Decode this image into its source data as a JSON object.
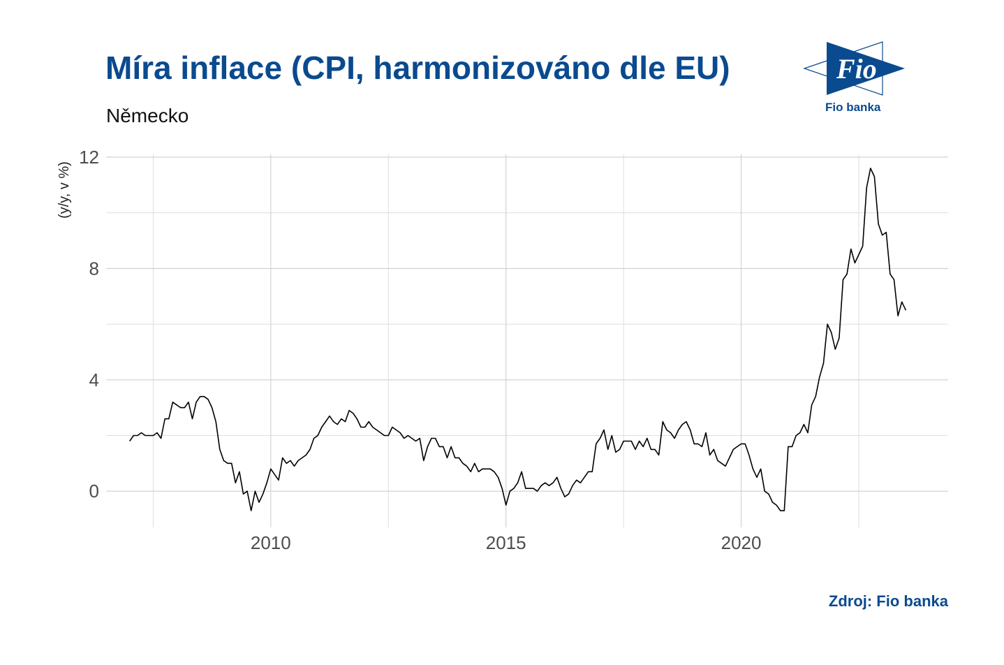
{
  "header": {
    "title": "Míra inflace (CPI, harmonizováno dle EU)",
    "subtitle": "Německo"
  },
  "logo": {
    "text": "Fio",
    "caption": "Fio banka",
    "color": "#0a4a8f"
  },
  "footer": {
    "source": "Zdroj: Fio banka"
  },
  "chart_data": {
    "type": "line",
    "title": "Míra inflace (CPI, harmonizováno dle EU)",
    "subtitle": "Německo",
    "xlabel": "",
    "ylabel": "(y/y, v %)",
    "xlim": [
      2006.5,
      2024.4
    ],
    "ylim": [
      -1.3,
      12.1
    ],
    "x_ticks": [
      2010,
      2015,
      2020
    ],
    "x_tick_labels": [
      "2010",
      "2015",
      "2020"
    ],
    "x_minor_gridlines": [
      2007.5,
      2012.5,
      2017.5,
      2022.5
    ],
    "y_ticks": [
      0,
      4,
      8,
      12
    ],
    "y_tick_labels": [
      "0",
      "4",
      "8",
      "12"
    ],
    "y_minor_gridlines": [
      2,
      6,
      10
    ],
    "grid": true,
    "line_color": "#000000",
    "series": [
      {
        "x_start": 2007.0,
        "x_step": 0.08333333,
        "values": [
          1.8,
          2.0,
          2.0,
          2.1,
          2.0,
          2.0,
          2.0,
          2.1,
          1.9,
          2.6,
          2.6,
          3.2,
          3.1,
          3.0,
          3.0,
          3.2,
          2.6,
          3.2,
          3.4,
          3.4,
          3.3,
          3.0,
          2.5,
          1.5,
          1.1,
          1.0,
          1.0,
          0.3,
          0.7,
          -0.1,
          0.0,
          -0.7,
          0.0,
          -0.4,
          -0.1,
          0.3,
          0.8,
          0.6,
          0.4,
          1.2,
          1.0,
          1.1,
          0.9,
          1.1,
          1.2,
          1.3,
          1.5,
          1.9,
          2.0,
          2.3,
          2.5,
          2.7,
          2.5,
          2.4,
          2.6,
          2.5,
          2.9,
          2.8,
          2.6,
          2.3,
          2.3,
          2.5,
          2.3,
          2.2,
          2.1,
          2.0,
          2.0,
          2.3,
          2.2,
          2.1,
          1.9,
          2.0,
          1.9,
          1.8,
          1.9,
          1.1,
          1.6,
          1.9,
          1.9,
          1.6,
          1.6,
          1.2,
          1.6,
          1.2,
          1.2,
          1.0,
          0.9,
          0.7,
          1.0,
          0.7,
          0.8,
          0.8,
          0.8,
          0.7,
          0.5,
          0.1,
          -0.5,
          0.0,
          0.1,
          0.3,
          0.7,
          0.1,
          0.1,
          0.1,
          0.0,
          0.2,
          0.3,
          0.2,
          0.3,
          0.5,
          0.1,
          -0.2,
          -0.1,
          0.2,
          0.4,
          0.3,
          0.5,
          0.7,
          0.7,
          1.7,
          1.9,
          2.2,
          1.5,
          2.0,
          1.4,
          1.5,
          1.8,
          1.8,
          1.8,
          1.5,
          1.8,
          1.6,
          1.9,
          1.5,
          1.5,
          1.3,
          2.5,
          2.2,
          2.1,
          1.9,
          2.2,
          2.4,
          2.5,
          2.2,
          1.7,
          1.7,
          1.6,
          2.1,
          1.3,
          1.5,
          1.1,
          1.0,
          0.9,
          1.2,
          1.5,
          1.6,
          1.7,
          1.7,
          1.3,
          0.8,
          0.5,
          0.8,
          0.0,
          -0.1,
          -0.4,
          -0.5,
          -0.7,
          -0.7,
          1.6,
          1.6,
          2.0,
          2.1,
          2.4,
          2.1,
          3.1,
          3.4,
          4.1,
          4.6,
          6.0,
          5.7,
          5.1,
          5.5,
          7.6,
          7.8,
          8.7,
          8.2,
          8.5,
          8.8,
          10.9,
          11.6,
          11.3,
          9.6,
          9.2,
          9.3,
          7.8,
          7.6,
          6.3,
          6.8,
          6.5
        ]
      }
    ]
  }
}
